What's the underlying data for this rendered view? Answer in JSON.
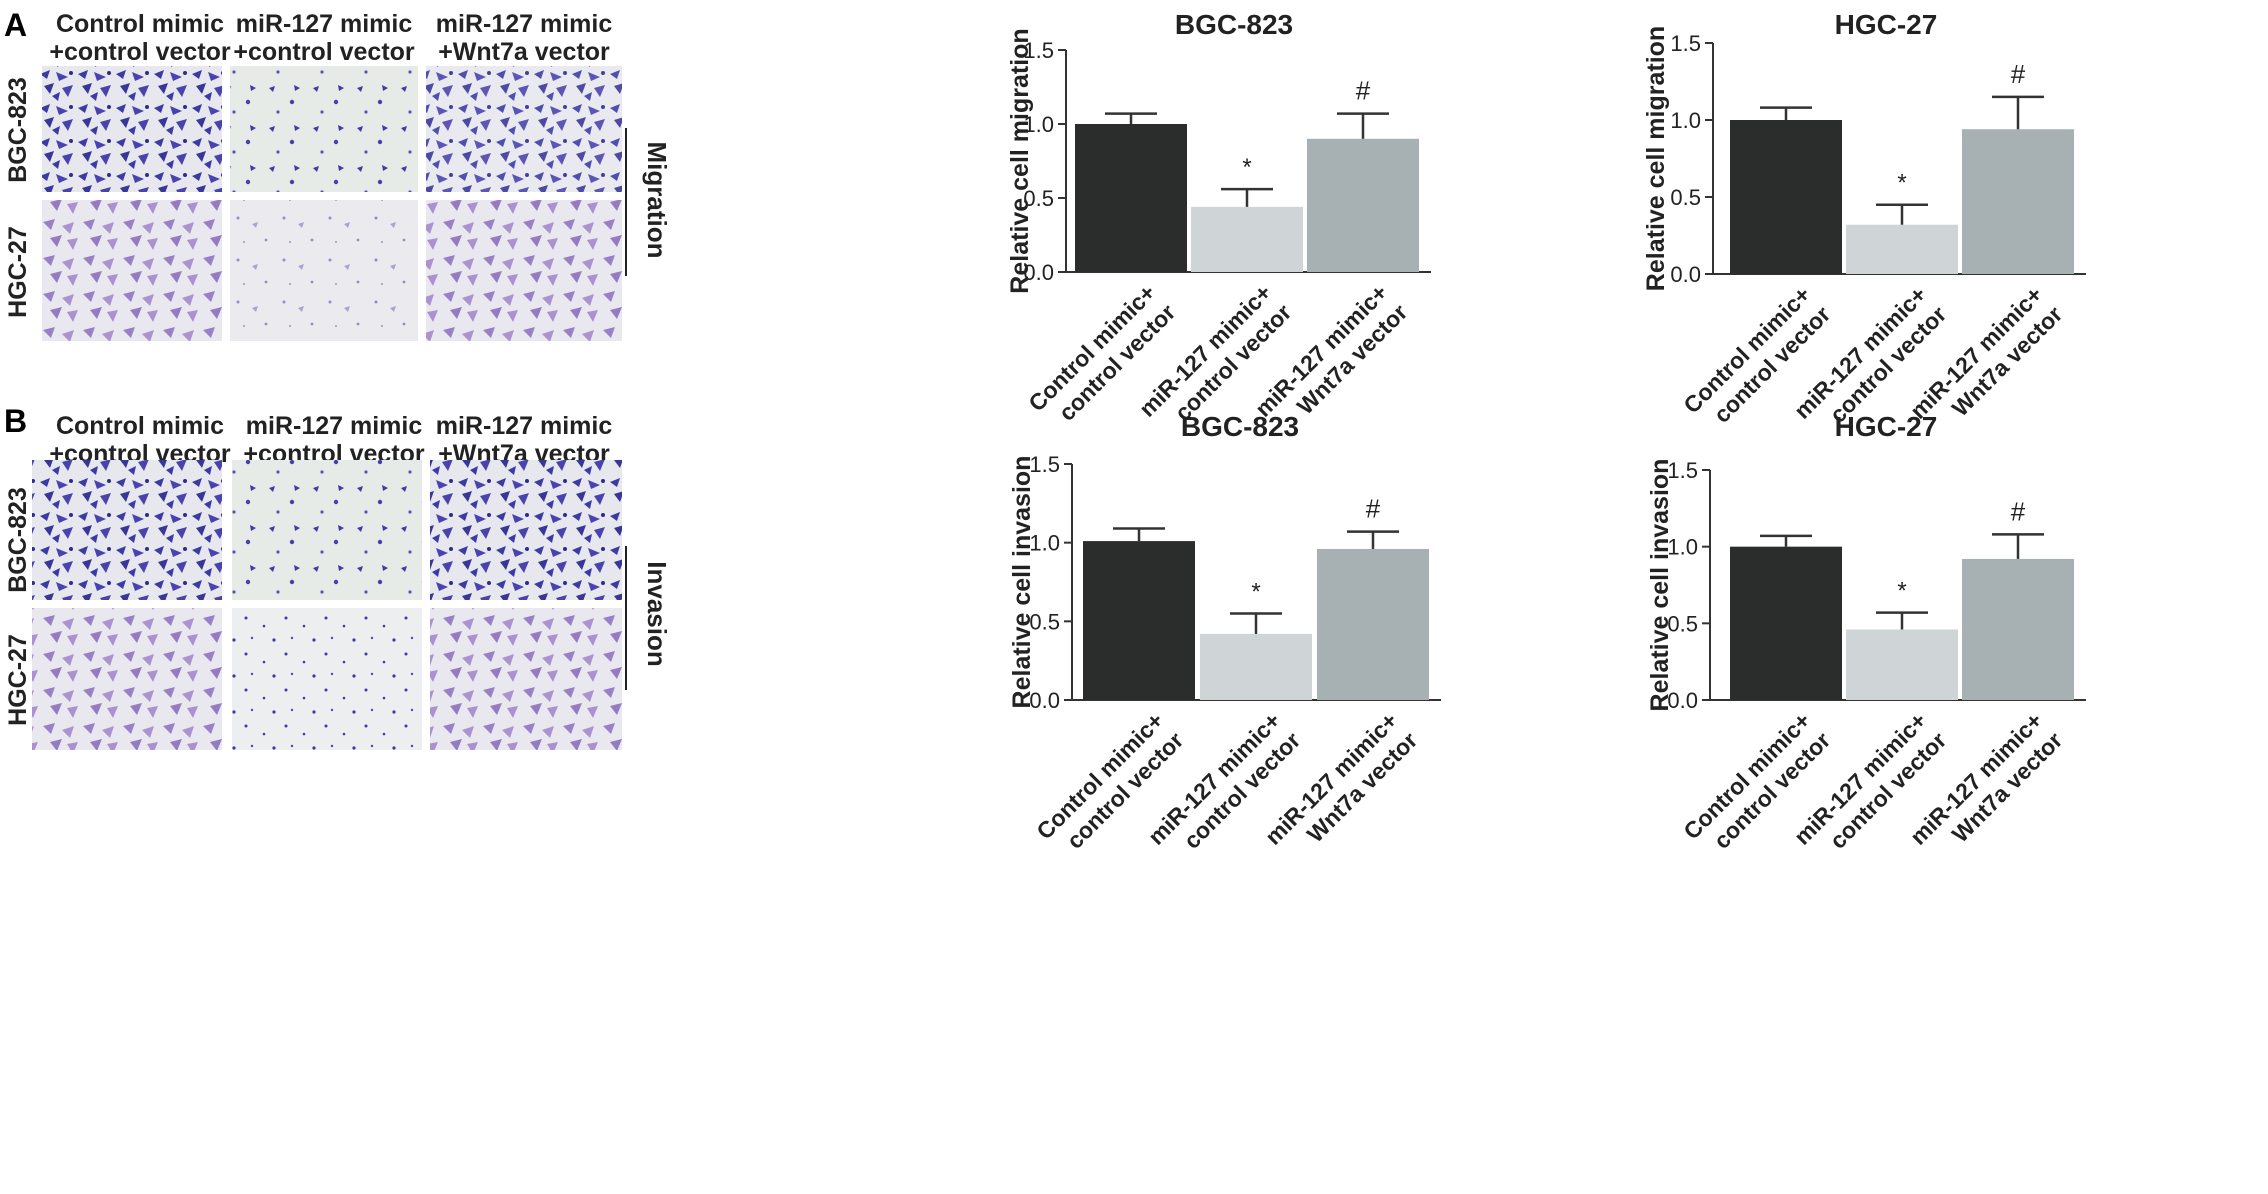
{
  "panels": [
    {
      "letter": "A",
      "assay_label": "Migration",
      "columns": [
        [
          "Control mimic",
          "+control vector"
        ],
        [
          "miR-127 mimic",
          "+control vector"
        ],
        [
          "miR-127 mimic",
          "+Wnt7a vector"
        ]
      ],
      "rows": [
        "BGC-823",
        "HGC-27"
      ]
    },
    {
      "letter": "B",
      "assay_label": "Invasion",
      "columns": [
        [
          "Control mimic",
          "+control vector"
        ],
        [
          "miR-127 mimic",
          "+control vector"
        ],
        [
          "miR-127 mimic",
          "+Wnt7a vector"
        ]
      ],
      "rows": [
        "BGC-823",
        "HGC-27"
      ]
    }
  ],
  "colors": {
    "bar1": "#2b2d2c",
    "bar2": "#cfd5d7",
    "bar3": "#a7b0b3",
    "stain_dark": "#3d3aa6",
    "stain_light": "#8e6bb5",
    "background_field": "#e8ebea"
  },
  "chart_data": [
    {
      "type": "bar",
      "title": "BGC-823",
      "ylabel": "Relative cell migration",
      "ylim": [
        0,
        1.5
      ],
      "yticks": [
        "0.0",
        "0.5",
        "1.0",
        "1.5"
      ],
      "categories": [
        [
          "Control mimic+",
          "control vector"
        ],
        [
          "miR-127 mimic+",
          "control vector"
        ],
        [
          "miR-127 mimic+",
          "Wnt7a vector"
        ]
      ],
      "values": [
        1.0,
        0.44,
        0.9
      ],
      "errors": [
        0.07,
        0.12,
        0.17
      ],
      "annotations": [
        "",
        "*",
        "#"
      ]
    },
    {
      "type": "bar",
      "title": "HGC-27",
      "ylabel": "Relative cell migration",
      "ylim": [
        0,
        1.5
      ],
      "yticks": [
        "0.0",
        "0.5",
        "1.0",
        "1.5"
      ],
      "categories": [
        [
          "Control mimic+",
          "control vector"
        ],
        [
          "miR-127 mimic+",
          "control vector"
        ],
        [
          "miR-127 mimic+",
          "Wnt7a vector"
        ]
      ],
      "values": [
        1.0,
        0.32,
        0.94
      ],
      "errors": [
        0.08,
        0.13,
        0.21
      ],
      "annotations": [
        "",
        "*",
        "#"
      ]
    },
    {
      "type": "bar",
      "title": "BGC-823",
      "ylabel": "Relative cell invasion",
      "ylim": [
        0,
        1.5
      ],
      "yticks": [
        "0.0",
        "0.5",
        "1.0",
        "1.5"
      ],
      "categories": [
        [
          "Control mimic+",
          "control vector"
        ],
        [
          "miR-127 mimic+",
          "control vector"
        ],
        [
          "miR-127 mimic+",
          "Wnt7a vector"
        ]
      ],
      "values": [
        1.01,
        0.42,
        0.96
      ],
      "errors": [
        0.08,
        0.13,
        0.11
      ],
      "annotations": [
        "",
        "*",
        "#"
      ]
    },
    {
      "type": "bar",
      "title": "HGC-27",
      "ylabel": "Relative cell invasion",
      "ylim": [
        0,
        1.5
      ],
      "yticks": [
        "0.0",
        "0.5",
        "1.0",
        "1.5"
      ],
      "categories": [
        [
          "Control mimic+",
          "control vector"
        ],
        [
          "miR-127 mimic+",
          "control vector"
        ],
        [
          "miR-127 mimic+",
          "Wnt7a vector"
        ]
      ],
      "values": [
        1.0,
        0.46,
        0.92
      ],
      "errors": [
        0.07,
        0.11,
        0.16
      ],
      "annotations": [
        "",
        "*",
        "#"
      ]
    }
  ]
}
